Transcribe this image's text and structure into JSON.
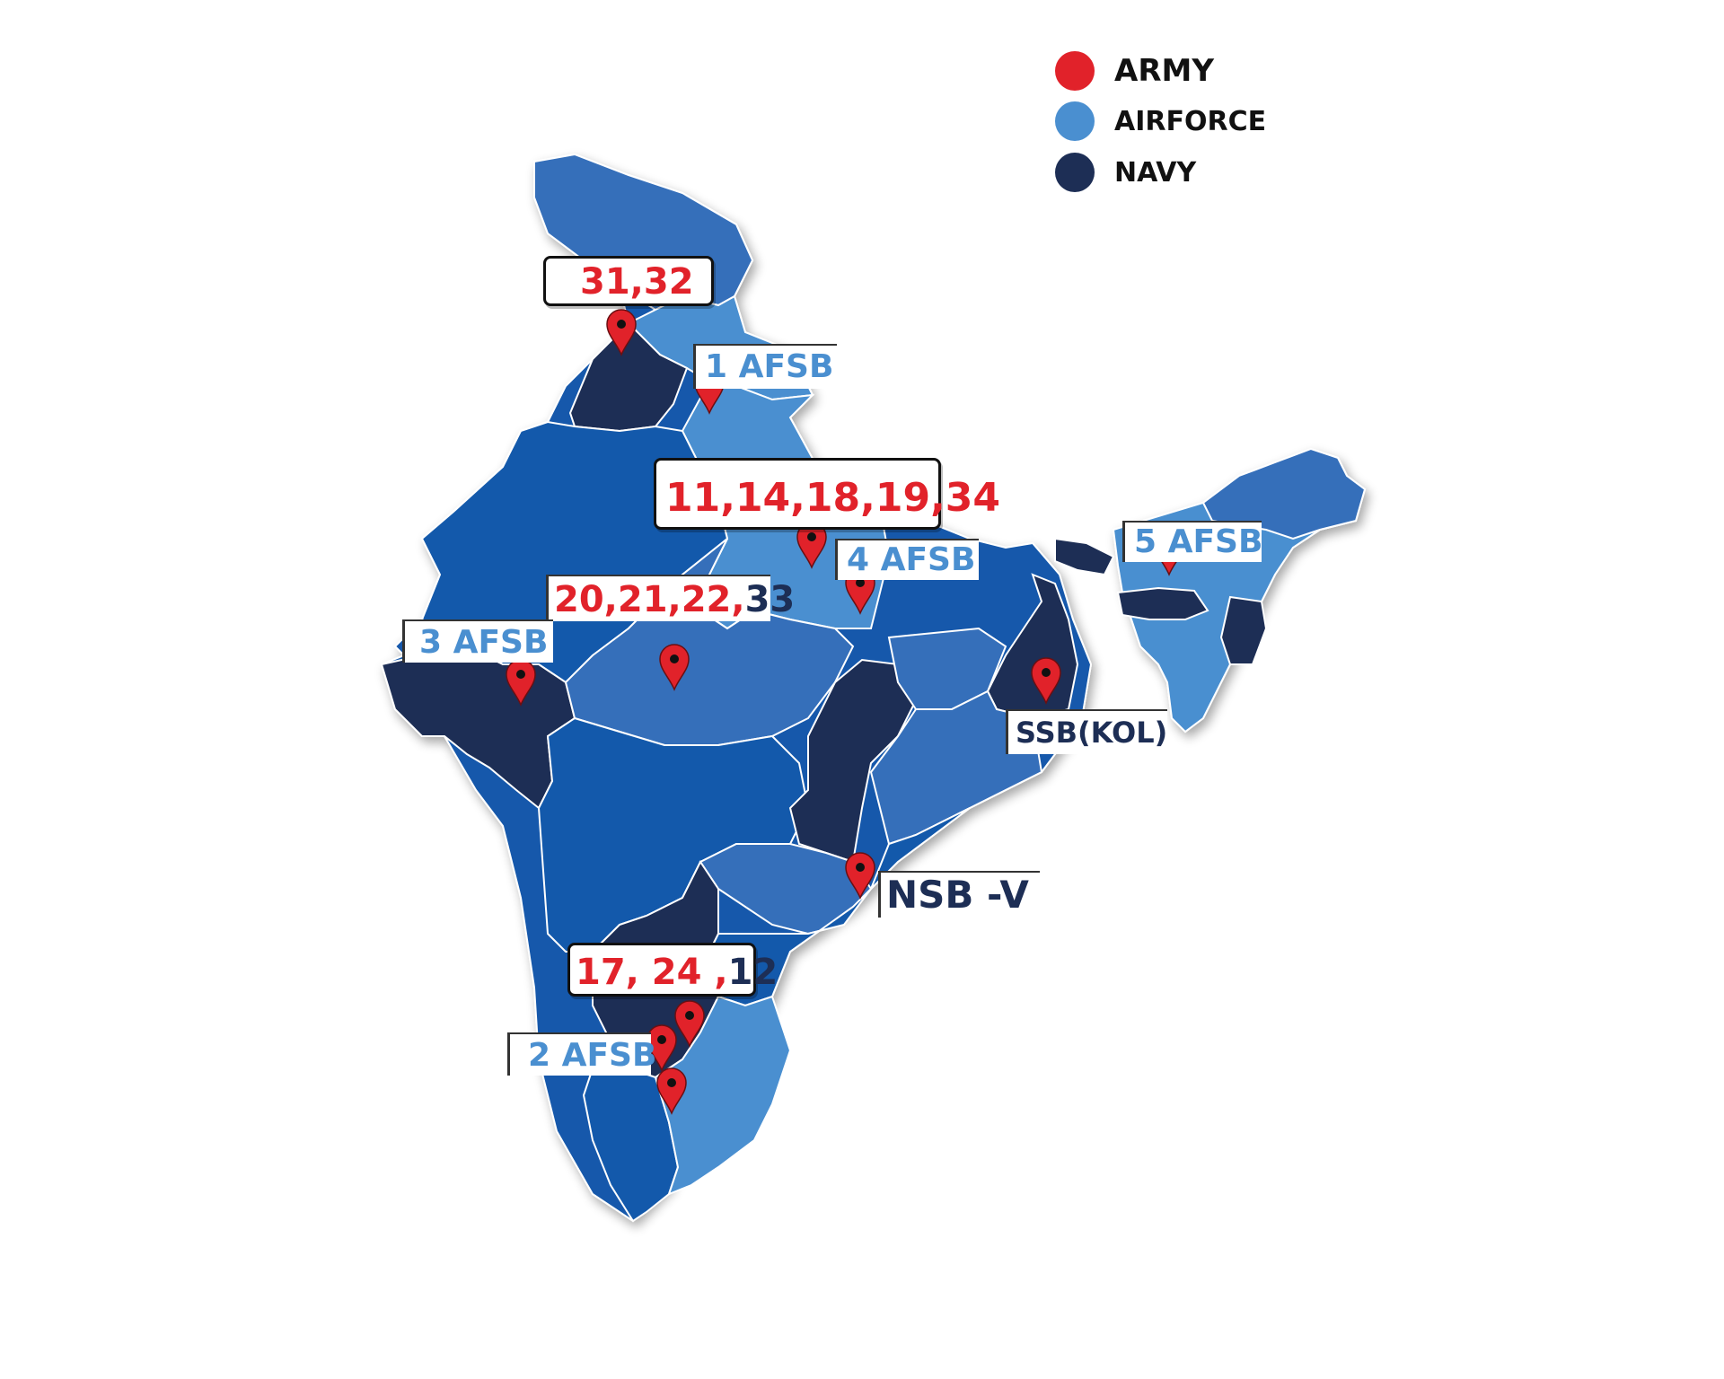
{
  "colors": {
    "army": "#e1222a",
    "airforce": "#4a8fd0",
    "navy": "#1d2e55",
    "map_mid": "#356fba",
    "map_deep": "#0f5aad"
  },
  "legend": {
    "army": {
      "label": "ARMY",
      "color": "#e1222a"
    },
    "airforce": {
      "label": "AIRFORCE",
      "color": "#4a8fd0"
    },
    "navy": {
      "label": "NAVY",
      "color": "#1d2e55"
    }
  },
  "callouts": {
    "board_31_32": {
      "text": "31,32"
    },
    "afsb_1": {
      "text": "1 AFSB"
    },
    "board_11_34": {
      "text": "11,14,18,19,34"
    },
    "afsb_4": {
      "text": "4 AFSB"
    },
    "afsb_5": {
      "text": "5 AFSB"
    },
    "board_20_33": {
      "army_text": "20,21,22,",
      "navy_text": "33"
    },
    "afsb_3": {
      "text": "3 AFSB"
    },
    "ssb_kol": {
      "text": "SSB(KOL)"
    },
    "nsb_v": {
      "text": "NSB -V"
    },
    "board_17_12": {
      "army_text": "17, 24 ,",
      "navy_text": "12"
    },
    "afsb_2": {
      "text": "2 AFSB"
    }
  }
}
